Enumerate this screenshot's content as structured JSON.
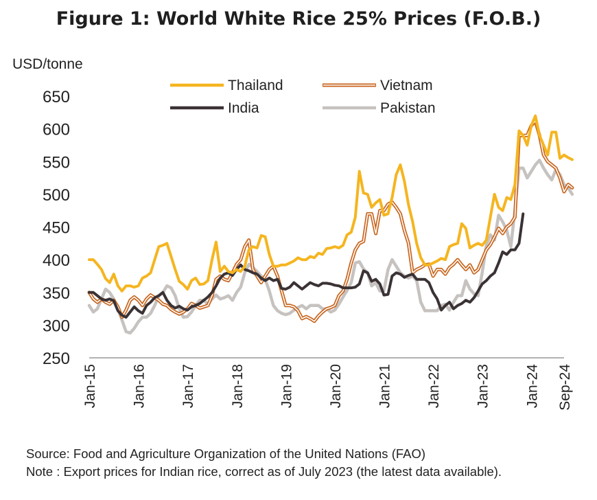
{
  "chart_data": {
    "type": "line",
    "title": "Figure 1: World White Rice 25% Prices (F.O.B.)",
    "ylabel": "USD/tonne",
    "ylim": [
      250,
      650
    ],
    "yticks": [
      "250",
      "300",
      "350",
      "400",
      "450",
      "500",
      "550",
      "600",
      "650"
    ],
    "xticks": [
      "Jan-15",
      "Jan-16",
      "Jan-17",
      "Jan-18",
      "Jan-19",
      "Jan-20",
      "Jan-21",
      "Jan-22",
      "Jan-23",
      "Jan-24",
      "Sep-24"
    ],
    "x_start": "Jan-15",
    "x_end": "Sep-24",
    "legend_position": "top",
    "grid": false,
    "series": [
      {
        "name": "Thailand",
        "color": "#F5B520",
        "style": "solid",
        "values": [
          400,
          400,
          393,
          385,
          371,
          365,
          378,
          360,
          352,
          360,
          360,
          358,
          360,
          372,
          375,
          380,
          400,
          420,
          422,
          425,
          405,
          385,
          367,
          362,
          355,
          368,
          372,
          362,
          363,
          368,
          400,
          427,
          382,
          390,
          382,
          380,
          385,
          382,
          390,
          415,
          420,
          418,
          437,
          435,
          408,
          390,
          390,
          392,
          392,
          395,
          398,
          403,
          400,
          400,
          405,
          403,
          410,
          408,
          417,
          418,
          420,
          418,
          422,
          438,
          442,
          465,
          535,
          502,
          500,
          480,
          487,
          492,
          468,
          470,
          495,
          530,
          545,
          520,
          484,
          458,
          425,
          403,
          392,
          392,
          395,
          398,
          402,
          400,
          420,
          423,
          425,
          455,
          448,
          418,
          422,
          425,
          422,
          430,
          465,
          500,
          480,
          475,
          495,
          492,
          515,
          597,
          590,
          575,
          605,
          620,
          590,
          575,
          560,
          595,
          595,
          555,
          560,
          556,
          553
        ]
      },
      {
        "name": "Vietnam",
        "color": "#C8651E",
        "style": "double",
        "values": [
          350,
          340,
          335,
          340,
          335,
          332,
          338,
          328,
          312,
          323,
          338,
          343,
          338,
          330,
          340,
          346,
          342,
          338,
          332,
          330,
          324,
          320,
          317,
          320,
          325,
          333,
          330,
          326,
          328,
          330,
          345,
          370,
          375,
          370,
          368,
          380,
          393,
          400,
          420,
          430,
          385,
          375,
          365,
          375,
          385,
          390,
          375,
          352,
          330,
          330,
          328,
          322,
          310,
          313,
          310,
          306,
          314,
          320,
          325,
          327,
          330,
          345,
          352,
          370,
          395,
          415,
          425,
          428,
          470,
          470,
          440,
          475,
          475,
          485,
          488,
          480,
          470,
          445,
          425,
          380,
          385,
          388,
          392,
          393,
          375,
          385,
          385,
          378,
          388,
          393,
          400,
          392,
          385,
          392,
          380,
          385,
          400,
          415,
          423,
          435,
          448,
          440,
          450,
          455,
          465,
          590,
          590,
          590,
          605,
          612,
          590,
          560,
          550,
          545,
          540,
          525,
          504,
          515,
          510
        ]
      },
      {
        "name": "India",
        "color": "#3A3234",
        "style": "solid",
        "values": [
          350,
          350,
          345,
          340,
          338,
          340,
          337,
          322,
          315,
          312,
          320,
          328,
          322,
          318,
          330,
          335,
          342,
          345,
          350,
          338,
          330,
          326,
          329,
          325,
          323,
          328,
          330,
          333,
          338,
          343,
          350,
          360,
          372,
          378,
          380,
          376,
          385,
          392,
          385,
          383,
          380,
          378,
          372,
          368,
          372,
          368,
          370,
          356,
          355,
          358,
          365,
          360,
          355,
          360,
          365,
          362,
          360,
          364,
          364,
          363,
          361,
          360,
          357,
          357,
          357,
          358,
          363,
          383,
          380,
          367,
          370,
          363,
          346,
          347,
          375,
          380,
          378,
          373,
          376,
          378,
          370,
          370,
          370,
          365,
          350,
          340,
          323,
          330,
          335,
          325,
          330,
          333,
          338,
          335,
          342,
          352,
          363,
          368,
          375,
          380,
          395,
          412,
          408,
          415,
          415,
          425,
          470
        ]
      },
      {
        "name": "Pakistan",
        "color": "#C6C2C0",
        "style": "solid",
        "values": [
          330,
          320,
          325,
          340,
          355,
          350,
          340,
          325,
          308,
          290,
          288,
          295,
          305,
          312,
          312,
          318,
          330,
          345,
          350,
          360,
          357,
          345,
          325,
          312,
          313,
          320,
          330,
          338,
          338,
          332,
          340,
          346,
          340,
          342,
          345,
          338,
          350,
          358,
          380,
          393,
          388,
          382,
          375,
          370,
          352,
          330,
          322,
          318,
          316,
          318,
          323,
          327,
          330,
          325,
          330,
          330,
          330,
          325,
          325,
          320,
          323,
          332,
          343,
          353,
          365,
          395,
          397,
          386,
          380,
          360,
          365,
          352,
          353,
          385,
          400,
          390,
          380,
          375,
          372,
          375,
          368,
          335,
          322,
          322,
          322,
          322,
          330,
          332,
          323,
          335,
          345,
          345,
          368,
          355,
          348,
          345,
          380,
          422,
          438,
          430,
          468,
          458,
          445,
          420,
          475,
          540,
          540,
          525,
          535,
          545,
          552,
          540,
          530,
          522,
          538,
          530,
          515,
          510,
          500
        ]
      }
    ]
  },
  "notes": {
    "source": "Source: Food and Agriculture Organization of the United Nations (FAO)",
    "note": "Note : Export prices for Indian rice, correct as of July 2023 (the latest data available)."
  }
}
